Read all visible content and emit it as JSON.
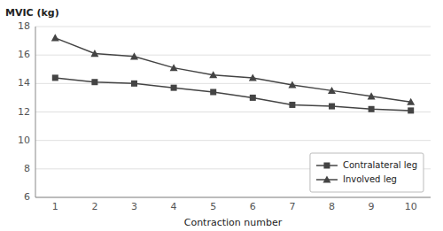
{
  "chart_data": {
    "type": "line",
    "x": [
      1,
      2,
      3,
      4,
      5,
      6,
      7,
      8,
      9,
      10
    ],
    "series": [
      {
        "name": "Contralateral leg",
        "color": "#444444",
        "marker": "square",
        "line_style": "solid",
        "values": [
          14.4,
          14.1,
          14.0,
          13.7,
          13.4,
          13.0,
          12.5,
          12.4,
          12.2,
          12.1
        ]
      },
      {
        "name": "Involved leg",
        "color": "#444444",
        "marker": "triangle",
        "line_style": "solid",
        "values": [
          17.2,
          16.1,
          15.9,
          15.1,
          14.6,
          14.4,
          13.9,
          13.5,
          13.1,
          12.7
        ]
      }
    ],
    "x_label": "Contraction number",
    "y_label": "MVIC (kg)",
    "xlim": [
      0.5,
      10.5
    ],
    "xticks": [
      1,
      2,
      3,
      4,
      5,
      6,
      7,
      8,
      9,
      10
    ],
    "ylim": [
      6,
      18
    ],
    "yticks": [
      6,
      8,
      10,
      12,
      14,
      16,
      18
    ],
    "grid": true,
    "legend": "lower right"
  }
}
